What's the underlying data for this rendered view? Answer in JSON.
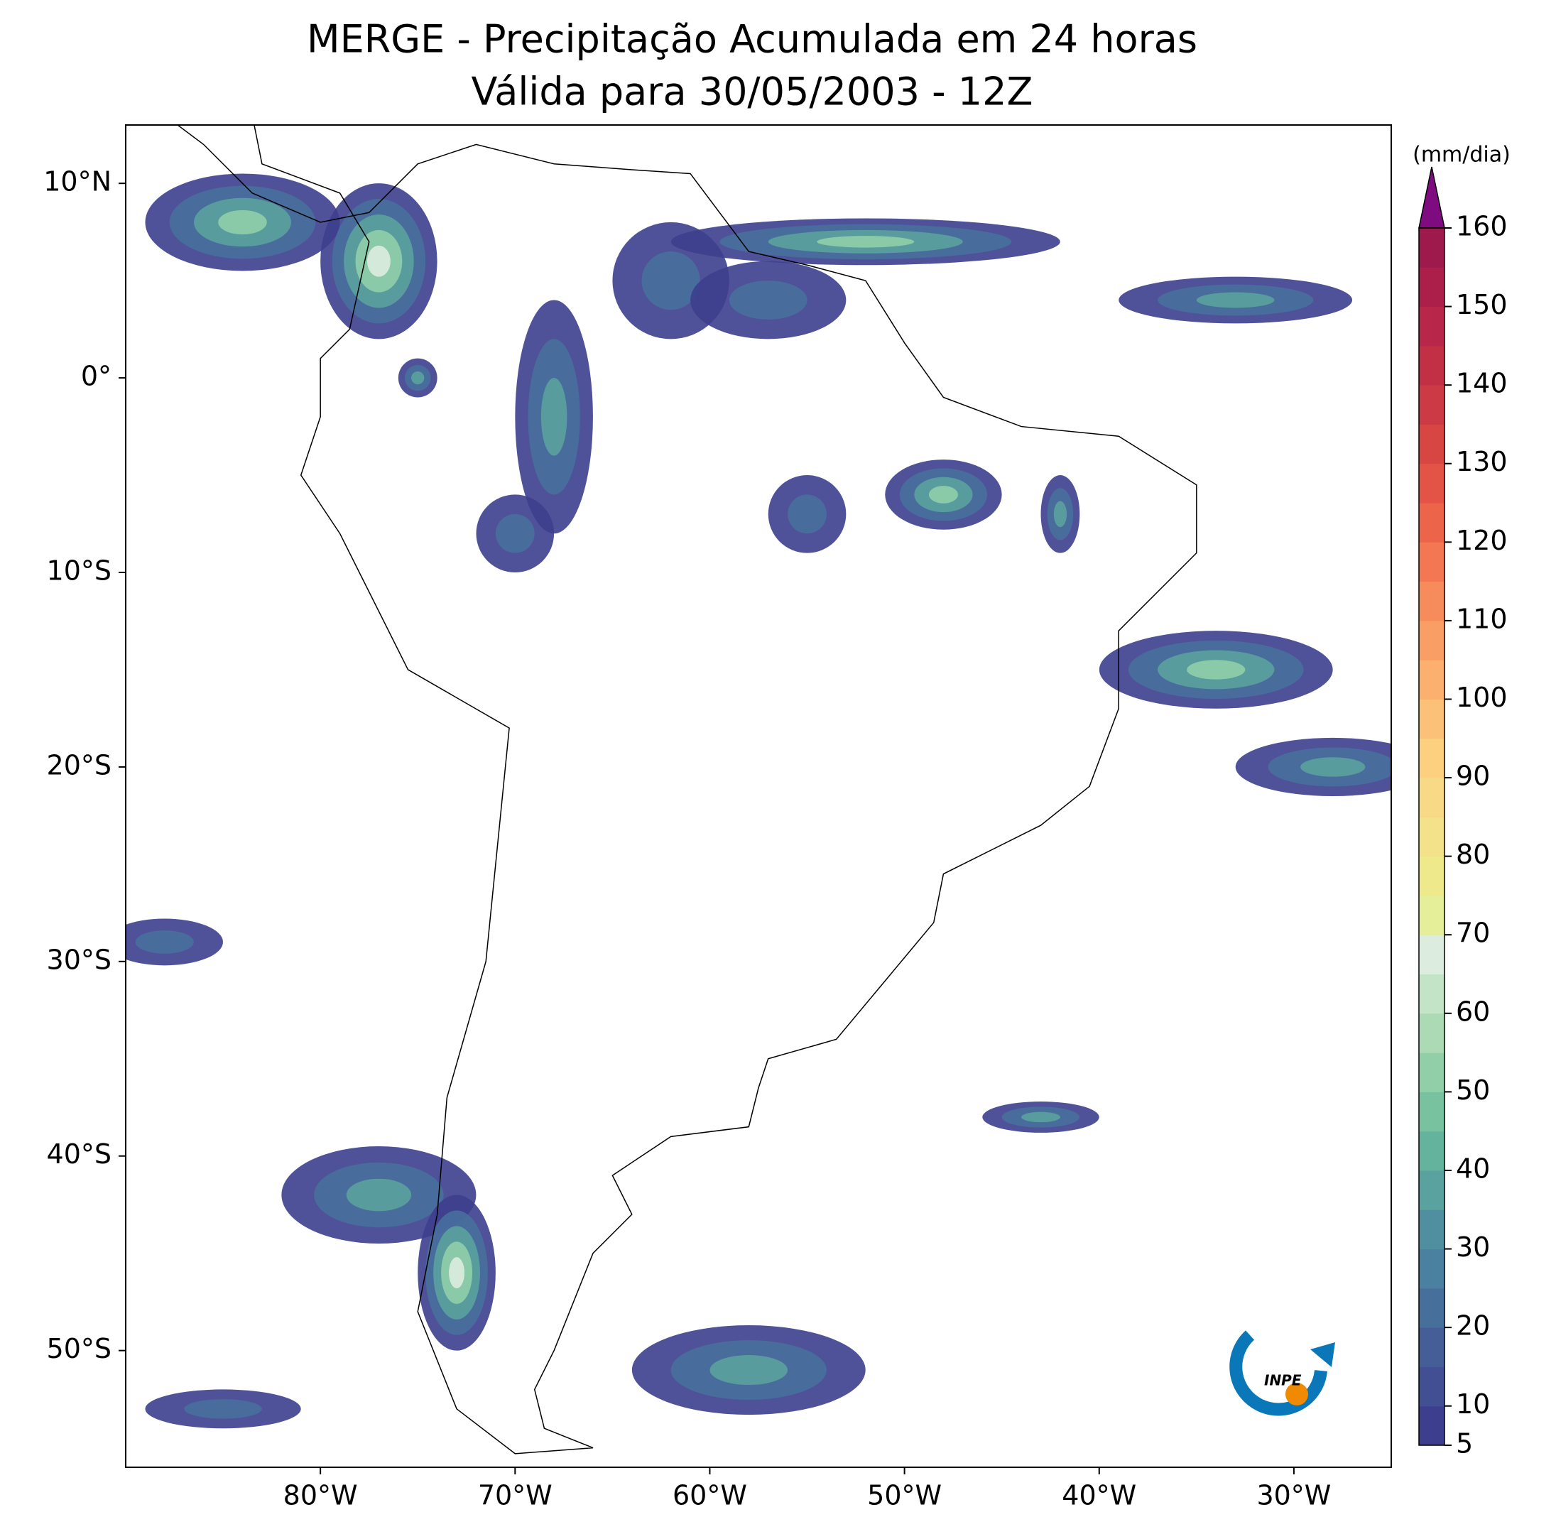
{
  "title": "MERGE - Precipitação Acumulada em 24 horas",
  "subtitle": "Válida para 30/05/2003 - 12Z",
  "map": {
    "lonlim": [
      -90,
      -25
    ],
    "latlim": [
      -56,
      13
    ],
    "lonticks": [
      {
        "value": -80,
        "label": "80°W"
      },
      {
        "value": -70,
        "label": "70°W"
      },
      {
        "value": -60,
        "label": "60°W"
      },
      {
        "value": -50,
        "label": "50°W"
      },
      {
        "value": -40,
        "label": "40°W"
      },
      {
        "value": -30,
        "label": "30°W"
      }
    ],
    "latticks": [
      {
        "value": 10,
        "label": "10°N"
      },
      {
        "value": 0,
        "label": "0°"
      },
      {
        "value": -10,
        "label": "10°S"
      },
      {
        "value": -20,
        "label": "20°S"
      },
      {
        "value": -30,
        "label": "30°S"
      },
      {
        "value": -40,
        "label": "40°S"
      },
      {
        "value": -50,
        "label": "50°S"
      }
    ]
  },
  "colorbar": {
    "label": "(mm/dia)",
    "lim": [
      5,
      160
    ],
    "ticks": [
      5,
      10,
      20,
      30,
      40,
      50,
      60,
      70,
      80,
      90,
      100,
      110,
      120,
      130,
      140,
      150,
      160
    ],
    "levels": [
      5,
      10,
      15,
      20,
      25,
      30,
      35,
      40,
      45,
      50,
      55,
      60,
      65,
      70,
      75,
      80,
      85,
      90,
      95,
      100,
      105,
      110,
      115,
      120,
      125,
      130,
      135,
      140,
      145,
      150,
      155,
      160
    ],
    "colors": [
      "#3d3f8e",
      "#434f93",
      "#465e98",
      "#476f9c",
      "#4a80a0",
      "#4f8f9f",
      "#5aa29f",
      "#64b39d",
      "#79c2a0",
      "#91cfa8",
      "#abdab5",
      "#c3e4c7",
      "#dcecde",
      "#e5ee98",
      "#eeea8c",
      "#f4e28a",
      "#f8d985",
      "#fcd07e",
      "#fcc178",
      "#fbb06f",
      "#f99f65",
      "#f68c5b",
      "#f27752",
      "#ec6449",
      "#e35346",
      "#d84644",
      "#cc3a45",
      "#c23046",
      "#b82749",
      "#ac1f4b",
      "#9e1a4c"
    ],
    "extend_color": "#7e0b80"
  },
  "logo": "INPE"
}
